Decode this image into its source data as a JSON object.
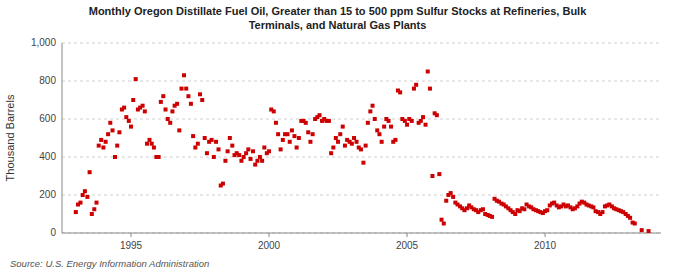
{
  "chart_data": {
    "type": "scatter",
    "title": "Monthly Oregon Distillate Fuel Oil, Greater than 15 to 500 ppm Sulfur Stocks at Refineries, Bulk\nTerminals, and Natural Gas Plants",
    "ylabel": "Thousand Barrels",
    "source": "Source: U.S. Energy Information Administration",
    "color": "#cc0000",
    "marker": "square",
    "grid": true,
    "xlim": [
      1992.5,
      2014.2
    ],
    "ylim": [
      0,
      1000
    ],
    "xticks": [
      1995,
      2000,
      2005,
      2010
    ],
    "yticks": [
      0,
      200,
      400,
      600,
      800,
      {
        "value": 1000,
        "label": "1,000"
      }
    ],
    "x": [
      1993.0,
      1993.08,
      1993.17,
      1993.25,
      1993.33,
      1993.42,
      1993.5,
      1993.58,
      1993.67,
      1993.75,
      1993.83,
      1993.92,
      1994.0,
      1994.08,
      1994.17,
      1994.25,
      1994.33,
      1994.42,
      1994.5,
      1994.58,
      1994.67,
      1994.75,
      1994.83,
      1994.92,
      1995.0,
      1995.08,
      1995.17,
      1995.25,
      1995.33,
      1995.42,
      1995.5,
      1995.58,
      1995.67,
      1995.75,
      1995.83,
      1995.92,
      1996.0,
      1996.08,
      1996.17,
      1996.25,
      1996.33,
      1996.42,
      1996.5,
      1996.58,
      1996.67,
      1996.75,
      1996.83,
      1996.92,
      1997.0,
      1997.08,
      1997.17,
      1997.25,
      1997.33,
      1997.42,
      1997.5,
      1997.58,
      1997.67,
      1997.75,
      1997.83,
      1997.92,
      1998.0,
      1998.08,
      1998.17,
      1998.25,
      1998.33,
      1998.42,
      1998.5,
      1998.58,
      1998.67,
      1998.75,
      1998.83,
      1998.92,
      1999.0,
      1999.08,
      1999.17,
      1999.25,
      1999.33,
      1999.42,
      1999.5,
      1999.58,
      1999.67,
      1999.75,
      1999.83,
      1999.92,
      2000.0,
      2000.08,
      2000.17,
      2000.25,
      2000.33,
      2000.42,
      2000.5,
      2000.58,
      2000.67,
      2000.75,
      2000.83,
      2000.92,
      2001.0,
      2001.08,
      2001.17,
      2001.25,
      2001.33,
      2001.42,
      2001.5,
      2001.58,
      2001.67,
      2001.75,
      2001.83,
      2001.92,
      2002.0,
      2002.08,
      2002.17,
      2002.25,
      2002.33,
      2002.42,
      2002.5,
      2002.58,
      2002.67,
      2002.75,
      2002.83,
      2002.92,
      2003.0,
      2003.08,
      2003.17,
      2003.25,
      2003.33,
      2003.42,
      2003.5,
      2003.58,
      2003.67,
      2003.75,
      2003.83,
      2003.92,
      2004.0,
      2004.08,
      2004.17,
      2004.25,
      2004.33,
      2004.42,
      2004.5,
      2004.58,
      2004.67,
      2004.75,
      2004.83,
      2004.92,
      2005.0,
      2005.08,
      2005.17,
      2005.25,
      2005.33,
      2005.42,
      2005.5,
      2005.58,
      2005.67,
      2005.75,
      2005.83,
      2005.92,
      2006.0,
      2006.08,
      2006.17,
      2006.25,
      2006.33,
      2006.42,
      2006.5,
      2006.58,
      2006.67,
      2006.75,
      2006.83,
      2006.92,
      2007.0,
      2007.08,
      2007.17,
      2007.25,
      2007.33,
      2007.42,
      2007.5,
      2007.58,
      2007.67,
      2007.75,
      2007.83,
      2007.92,
      2008.0,
      2008.08,
      2008.17,
      2008.25,
      2008.33,
      2008.42,
      2008.5,
      2008.58,
      2008.67,
      2008.75,
      2008.83,
      2008.92,
      2009.0,
      2009.08,
      2009.17,
      2009.25,
      2009.33,
      2009.42,
      2009.5,
      2009.58,
      2009.67,
      2009.75,
      2009.83,
      2009.92,
      2010.0,
      2010.08,
      2010.17,
      2010.25,
      2010.33,
      2010.42,
      2010.5,
      2010.58,
      2010.67,
      2010.75,
      2010.83,
      2010.92,
      2011.0,
      2011.08,
      2011.17,
      2011.25,
      2011.33,
      2011.42,
      2011.5,
      2011.58,
      2011.67,
      2011.75,
      2011.83,
      2011.92,
      2012.0,
      2012.08,
      2012.17,
      2012.25,
      2012.33,
      2012.42,
      2012.5,
      2012.58,
      2012.67,
      2012.75,
      2012.83,
      2012.92,
      2013.0,
      2013.08,
      2013.17,
      2013.25,
      2013.5,
      2013.75
    ],
    "values": [
      110,
      150,
      160,
      200,
      220,
      190,
      320,
      100,
      125,
      160,
      460,
      490,
      450,
      480,
      520,
      580,
      540,
      400,
      460,
      530,
      650,
      660,
      610,
      590,
      560,
      700,
      810,
      650,
      660,
      670,
      640,
      470,
      490,
      470,
      450,
      400,
      400,
      690,
      720,
      650,
      600,
      580,
      640,
      670,
      680,
      540,
      760,
      830,
      760,
      720,
      680,
      510,
      450,
      470,
      730,
      700,
      500,
      420,
      480,
      490,
      400,
      480,
      440,
      250,
      260,
      380,
      430,
      500,
      460,
      410,
      420,
      410,
      380,
      400,
      420,
      440,
      390,
      430,
      360,
      380,
      400,
      380,
      450,
      420,
      430,
      650,
      640,
      580,
      520,
      440,
      490,
      520,
      520,
      480,
      540,
      510,
      450,
      500,
      590,
      590,
      580,
      530,
      480,
      520,
      600,
      610,
      620,
      590,
      600,
      590,
      590,
      420,
      450,
      500,
      480,
      520,
      560,
      460,
      490,
      480,
      470,
      500,
      480,
      450,
      440,
      370,
      460,
      580,
      640,
      670,
      600,
      540,
      520,
      480,
      560,
      600,
      590,
      560,
      480,
      490,
      750,
      740,
      600,
      590,
      570,
      600,
      590,
      760,
      780,
      580,
      590,
      610,
      570,
      850,
      760,
      300,
      630,
      620,
      310,
      70,
      50,
      170,
      200,
      210,
      190,
      160,
      150,
      140,
      130,
      120,
      130,
      145,
      135,
      125,
      120,
      110,
      120,
      125,
      100,
      95,
      90,
      85,
      180,
      170,
      165,
      155,
      150,
      140,
      130,
      120,
      110,
      100,
      120,
      115,
      130,
      125,
      150,
      140,
      135,
      125,
      120,
      115,
      110,
      105,
      115,
      120,
      145,
      155,
      160,
      145,
      135,
      140,
      150,
      140,
      145,
      135,
      125,
      130,
      140,
      155,
      165,
      160,
      150,
      145,
      140,
      135,
      115,
      110,
      100,
      110,
      140,
      145,
      150,
      140,
      130,
      125,
      120,
      115,
      110,
      100,
      90,
      80,
      55,
      50,
      15,
      10
    ]
  }
}
